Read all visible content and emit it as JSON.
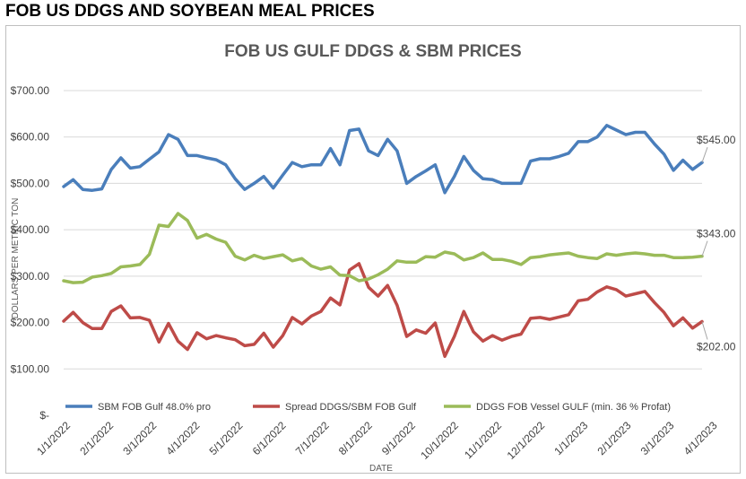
{
  "page": {
    "title": "FOB US DDGS AND SOYBEAN MEAL PRICES"
  },
  "chart_data": {
    "type": "line",
    "title": "FOB US GULF DDGS & SBM PRICES",
    "xlabel": "DATE",
    "ylabel": "DOLLARS PER METRIC TON",
    "ylim": [
      0,
      700
    ],
    "yticks": [
      {
        "value": 0,
        "label": "$-"
      },
      {
        "value": 100,
        "label": "$100.00"
      },
      {
        "value": 200,
        "label": "$200.00"
      },
      {
        "value": 300,
        "label": "$300.00"
      },
      {
        "value": 400,
        "label": "$400.00"
      },
      {
        "value": 500,
        "label": "$500.00"
      },
      {
        "value": 600,
        "label": "$600.00"
      },
      {
        "value": 700,
        "label": "$700.00"
      }
    ],
    "xticks": [
      "1/1/2022",
      "2/1/2022",
      "3/1/2022",
      "4/1/2022",
      "5/1/2022",
      "6/1/2022",
      "7/1/2022",
      "8/1/2022",
      "9/1/2022",
      "10/1/2022",
      "11/1/2022",
      "12/1/2022",
      "1/1/2023",
      "2/1/2023",
      "3/1/2023",
      "4/1/2023"
    ],
    "grid": true,
    "legend_position": "bottom",
    "series": [
      {
        "name": "SBM FOB Gulf 48.0% pro",
        "color": "#4a7ebb",
        "end_label": "$545.00",
        "values": [
          493,
          508,
          487,
          485,
          488,
          530,
          555,
          533,
          536,
          552,
          568,
          605,
          595,
          560,
          560,
          555,
          551,
          540,
          510,
          487,
          500,
          515,
          490,
          518,
          545,
          536,
          540,
          540,
          575,
          540,
          614,
          617,
          570,
          560,
          595,
          570,
          500,
          515,
          527,
          540,
          480,
          515,
          558,
          528,
          510,
          508,
          500,
          500,
          500,
          548,
          553,
          553,
          558,
          565,
          590,
          590,
          600,
          625,
          615,
          605,
          610,
          610,
          585,
          563,
          528,
          550,
          530,
          545
        ]
      },
      {
        "name": "Spread DDGS/SBM FOB Gulf",
        "color": "#be4b48",
        "end_label": "$202.00",
        "values": [
          203,
          222,
          200,
          187,
          187,
          224,
          236,
          210,
          211,
          205,
          158,
          198,
          160,
          142,
          178,
          165,
          172,
          167,
          163,
          150,
          153,
          177,
          147,
          172,
          211,
          197,
          214,
          224,
          253,
          238,
          313,
          327,
          276,
          257,
          280,
          237,
          170,
          184,
          177,
          199,
          127,
          170,
          224,
          180,
          160,
          172,
          162,
          170,
          175,
          209,
          211,
          207,
          212,
          217,
          247,
          250,
          266,
          277,
          271,
          257,
          262,
          267,
          243,
          222,
          193,
          210,
          188,
          202
        ]
      },
      {
        "name": "DDGS FOB Vessel GULF  (min. 36 % Profat)",
        "color": "#9bbb59",
        "end_label": "$343.00",
        "values": [
          290,
          286,
          287,
          298,
          301,
          306,
          320,
          322,
          325,
          347,
          410,
          407,
          435,
          420,
          382,
          390,
          380,
          373,
          343,
          335,
          345,
          338,
          342,
          346,
          333,
          338,
          322,
          315,
          320,
          302,
          301,
          290,
          294,
          303,
          315,
          333,
          330,
          330,
          342,
          341,
          352,
          348,
          335,
          340,
          350,
          336,
          336,
          332,
          325,
          340,
          342,
          346,
          348,
          350,
          343,
          340,
          338,
          348,
          345,
          348,
          350,
          348,
          345,
          345,
          340,
          340,
          341,
          343
        ]
      }
    ]
  }
}
